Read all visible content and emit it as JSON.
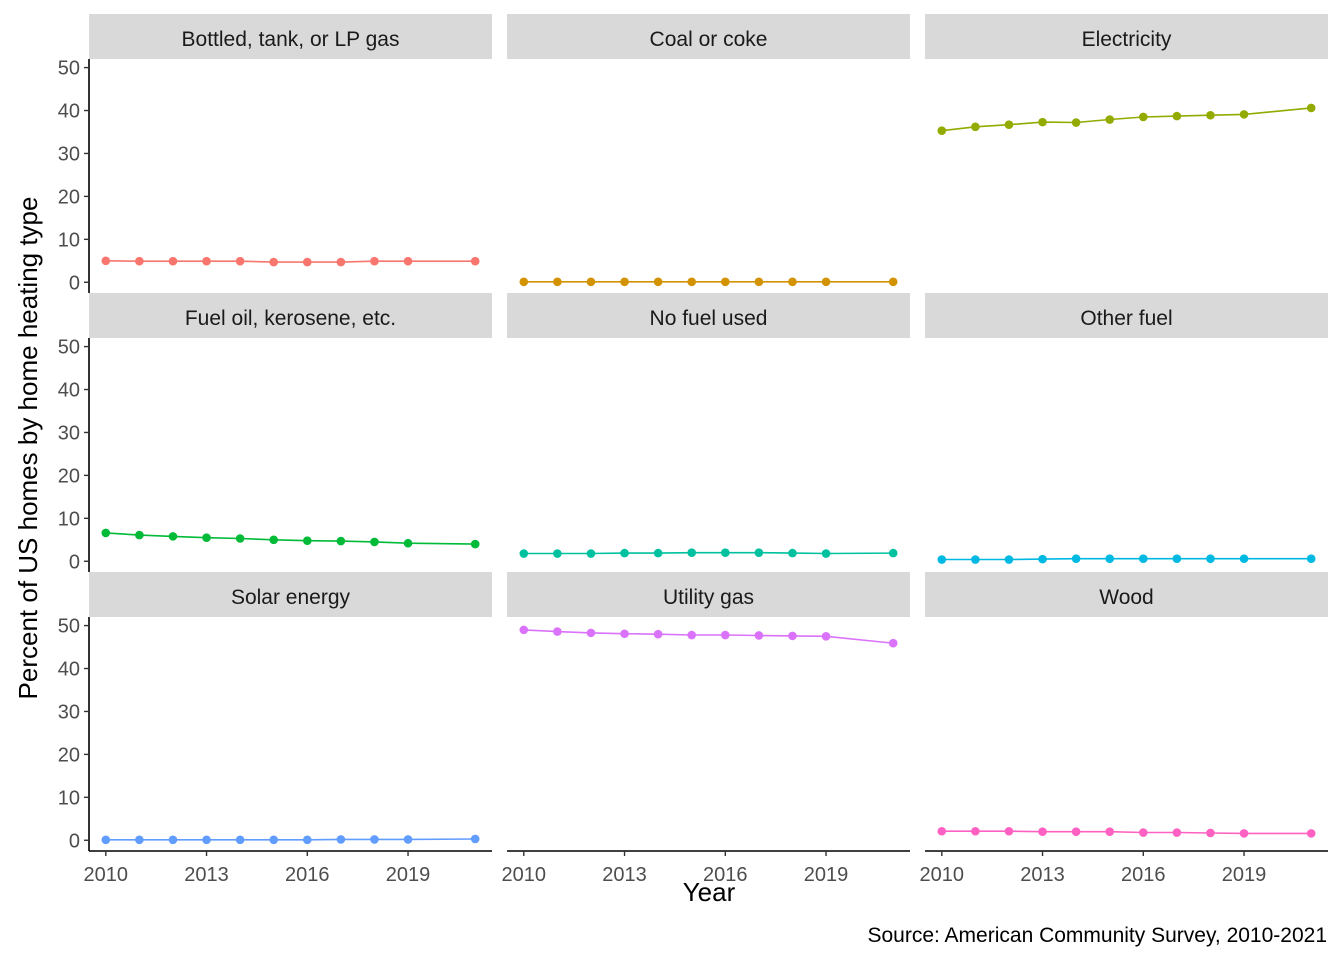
{
  "chart_data": {
    "type": "line",
    "layout": "facet-grid-3x3",
    "xlabel": "Year",
    "ylabel": "Percent of US homes by home heating type",
    "caption": "Source: American Community Survey, 2010-2021",
    "x": [
      2010,
      2011,
      2012,
      2013,
      2014,
      2015,
      2016,
      2017,
      2018,
      2019,
      2021
    ],
    "x_ticks": [
      2010,
      2013,
      2016,
      2019
    ],
    "y_ticks": [
      0,
      10,
      20,
      30,
      40,
      50
    ],
    "xlim": [
      2009.5,
      2021.5
    ],
    "ylim": [
      -2.5,
      52
    ],
    "grid": false,
    "series": [
      {
        "name": "Bottled, tank, or LP gas",
        "color": "#F8766D",
        "values": [
          5.0,
          4.9,
          4.9,
          4.9,
          4.9,
          4.7,
          4.7,
          4.7,
          4.9,
          4.9,
          4.9
        ]
      },
      {
        "name": "Coal or coke",
        "color": "#D39200",
        "values": [
          0.1,
          0.1,
          0.1,
          0.1,
          0.1,
          0.1,
          0.1,
          0.1,
          0.1,
          0.1,
          0.1
        ]
      },
      {
        "name": "Electricity",
        "color": "#93AA00",
        "values": [
          35.3,
          36.2,
          36.7,
          37.3,
          37.2,
          37.9,
          38.5,
          38.7,
          38.9,
          39.1,
          40.6
        ]
      },
      {
        "name": "Fuel oil, kerosene, etc.",
        "color": "#00BA38",
        "values": [
          6.6,
          6.1,
          5.8,
          5.5,
          5.3,
          5.0,
          4.8,
          4.7,
          4.5,
          4.2,
          4.0
        ]
      },
      {
        "name": "No fuel used",
        "color": "#00C19F",
        "values": [
          1.8,
          1.8,
          1.8,
          1.9,
          1.9,
          2.0,
          2.0,
          2.0,
          1.9,
          1.8,
          1.9
        ]
      },
      {
        "name": "Other fuel",
        "color": "#00B9E3",
        "values": [
          0.4,
          0.4,
          0.4,
          0.5,
          0.6,
          0.6,
          0.6,
          0.6,
          0.6,
          0.6,
          0.6
        ]
      },
      {
        "name": "Solar energy",
        "color": "#619CFF",
        "values": [
          0.1,
          0.1,
          0.1,
          0.1,
          0.1,
          0.1,
          0.1,
          0.2,
          0.2,
          0.2,
          0.3
        ]
      },
      {
        "name": "Utility gas",
        "color": "#DB72FB",
        "values": [
          49.0,
          48.6,
          48.3,
          48.1,
          48.0,
          47.8,
          47.8,
          47.7,
          47.6,
          47.5,
          45.9
        ]
      },
      {
        "name": "Wood",
        "color": "#FF61C3",
        "values": [
          2.1,
          2.1,
          2.1,
          2.0,
          2.0,
          2.0,
          1.8,
          1.8,
          1.7,
          1.6,
          1.6
        ]
      }
    ]
  }
}
